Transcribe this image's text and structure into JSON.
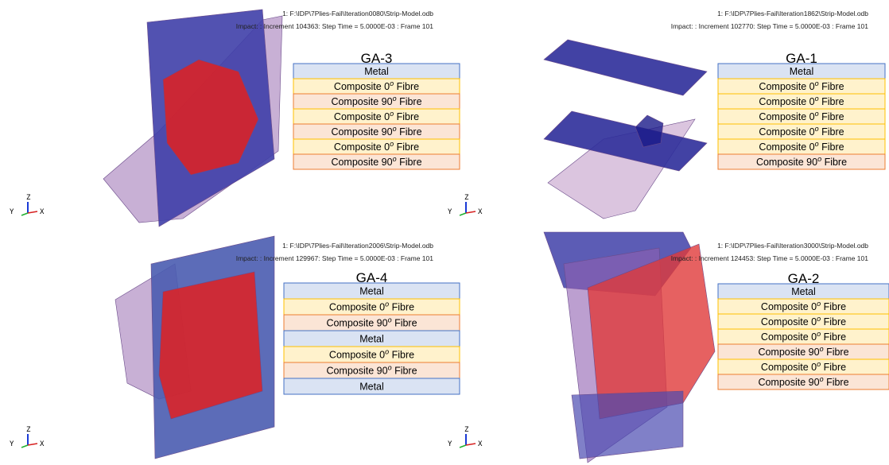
{
  "panels": [
    {
      "header": {
        "file": "1: F:\\IDP\\7Plies-Fail\\Iteration0080\\Strip-Model.odb",
        "step": "Impact: : Increment    104363: Step Time =    5.0000E-03 : Frame 101"
      },
      "title": "GA-3",
      "layers": [
        {
          "prefix": "Metal",
          "color": "#dae3f3"
        },
        {
          "prefix": "Composite 0",
          "sup": "o",
          "suffix": " Fibre",
          "color": "#fff2cc"
        },
        {
          "prefix": "Composite 90",
          "sup": "o",
          "suffix": " Fibre",
          "color": "#fbe5d6"
        },
        {
          "prefix": "Composite 0",
          "sup": "o",
          "suffix": " Fibre",
          "color": "#fff2cc"
        },
        {
          "prefix": "Composite 90",
          "sup": "o",
          "suffix": " Fibre",
          "color": "#fbe5d6"
        },
        {
          "prefix": "Composite 0",
          "sup": "o",
          "suffix": " Fibre",
          "color": "#fff2cc"
        },
        {
          "prefix": "Composite 90",
          "sup": "o",
          "suffix": " Fibre",
          "color": "#fbe5d6"
        }
      ]
    },
    {
      "header": {
        "file": "1: F:\\IDP\\7Plies-Fail\\Iteration1862\\Strip-Model.odb",
        "step": "Impact: : Increment    102770: Step Time =    5.0000E-03 : Frame 101"
      },
      "title": "GA-1",
      "layers": [
        {
          "prefix": "Metal",
          "color": "#dae3f3"
        },
        {
          "prefix": "Composite 0",
          "sup": "o",
          "suffix": " Fibre",
          "color": "#fff2cc"
        },
        {
          "prefix": "Composite 0",
          "sup": "o",
          "suffix": " Fibre",
          "color": "#fff2cc"
        },
        {
          "prefix": "Composite 0",
          "sup": "o",
          "suffix": " Fibre",
          "color": "#fff2cc"
        },
        {
          "prefix": "Composite 0",
          "sup": "o",
          "suffix": " Fibre",
          "color": "#fff2cc"
        },
        {
          "prefix": "Composite 0",
          "sup": "o",
          "suffix": " Fibre",
          "color": "#fff2cc"
        },
        {
          "prefix": "Composite 90",
          "sup": "o",
          "suffix": " Fibre",
          "color": "#fbe5d6"
        }
      ]
    },
    {
      "header": {
        "file": "1: F:\\IDP\\7Plies-Fail\\Iteration2006\\Strip-Model.odb",
        "step": "Impact: : Increment    129967: Step Time =    5.0000E-03 : Frame 101"
      },
      "title": "GA-4",
      "layers": [
        {
          "prefix": "Metal",
          "color": "#dae3f3"
        },
        {
          "prefix": "Composite 0",
          "sup": "o",
          "suffix": " Fibre",
          "color": "#fff2cc"
        },
        {
          "prefix": "Composite 90",
          "sup": "o",
          "suffix": " Fibre",
          "color": "#fbe5d6"
        },
        {
          "prefix": "Metal",
          "color": "#dae3f3"
        },
        {
          "prefix": "Composite 0",
          "sup": "o",
          "suffix": " Fibre",
          "color": "#fff2cc"
        },
        {
          "prefix": "Composite 90",
          "sup": "o",
          "suffix": " Fibre",
          "color": "#fbe5d6"
        },
        {
          "prefix": "Metal",
          "color": "#dae3f3"
        }
      ]
    },
    {
      "header": {
        "file": "1: F:\\IDP\\7Plies-Fail\\Iteration3000\\Strip-Model.odb",
        "step": "Impact: : Increment    124453: Step Time =    5.0000E-03 : Frame 101"
      },
      "title": "GA-2",
      "layers": [
        {
          "prefix": "Metal",
          "color": "#dae3f3"
        },
        {
          "prefix": "Composite 0",
          "sup": "o",
          "suffix": " Fibre",
          "color": "#fff2cc"
        },
        {
          "prefix": "Composite 0",
          "sup": "o",
          "suffix": " Fibre",
          "color": "#fff2cc"
        },
        {
          "prefix": "Composite 0",
          "sup": "o",
          "suffix": " Fibre",
          "color": "#fff2cc"
        },
        {
          "prefix": "Composite 90",
          "sup": "o",
          "suffix": " Fibre",
          "color": "#fbe5d6"
        },
        {
          "prefix": "Composite 0",
          "sup": "o",
          "suffix": " Fibre",
          "color": "#fff2cc"
        },
        {
          "prefix": "Composite 90",
          "sup": "o",
          "suffix": " Fibre",
          "color": "#fbe5d6"
        }
      ]
    }
  ],
  "triad": {
    "y": "Y",
    "z": "Z",
    "x": "X"
  }
}
